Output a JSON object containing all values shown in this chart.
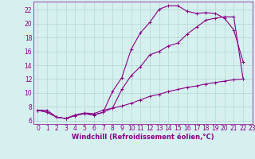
{
  "xlabel": "Windchill (Refroidissement éolien,°C)",
  "bg_color": "#d6f0f0",
  "grid_color": "#b0d8d0",
  "line_color": "#880088",
  "line1_x": [
    0,
    1,
    2,
    3,
    4,
    5,
    6,
    7,
    8,
    9,
    10,
    11,
    12,
    13,
    14,
    15,
    16,
    17,
    18,
    19,
    20,
    21,
    22
  ],
  "line1_y": [
    7.5,
    7.2,
    6.5,
    6.3,
    6.8,
    7.0,
    6.8,
    7.2,
    10.2,
    12.2,
    16.3,
    18.7,
    20.2,
    22.1,
    22.6,
    22.6,
    21.8,
    21.5,
    21.6,
    21.5,
    20.8,
    19.1,
    14.5
  ],
  "line2_x": [
    0,
    1,
    2,
    3,
    4,
    5,
    6,
    7,
    8,
    9,
    10,
    11,
    12,
    13,
    14,
    15,
    16,
    17,
    18,
    19,
    20,
    21,
    22
  ],
  "line2_y": [
    7.5,
    7.5,
    6.5,
    6.3,
    6.8,
    7.1,
    7.0,
    7.5,
    7.8,
    10.5,
    12.5,
    13.8,
    15.5,
    16.0,
    16.8,
    17.2,
    18.5,
    19.5,
    20.5,
    20.8,
    21.0,
    21.0,
    12.0
  ],
  "line3_x": [
    0,
    1,
    2,
    3,
    4,
    5,
    6,
    7,
    8,
    9,
    10,
    11,
    12,
    13,
    14,
    15,
    16,
    17,
    18,
    19,
    20,
    21,
    22
  ],
  "line3_y": [
    7.5,
    7.2,
    6.5,
    6.3,
    6.7,
    7.0,
    6.8,
    7.2,
    7.8,
    8.1,
    8.5,
    9.0,
    9.5,
    9.8,
    10.2,
    10.5,
    10.8,
    11.0,
    11.3,
    11.5,
    11.7,
    11.9,
    12.0
  ],
  "xlim": [
    -0.5,
    23
  ],
  "ylim": [
    5.5,
    23.2
  ],
  "xticks": [
    0,
    1,
    2,
    3,
    4,
    5,
    6,
    7,
    8,
    9,
    10,
    11,
    12,
    13,
    14,
    15,
    16,
    17,
    18,
    19,
    20,
    21,
    22,
    23
  ],
  "yticks": [
    6,
    8,
    10,
    12,
    14,
    16,
    18,
    20,
    22
  ],
  "tick_fontsize": 5.5,
  "xlabel_fontsize": 6.0
}
